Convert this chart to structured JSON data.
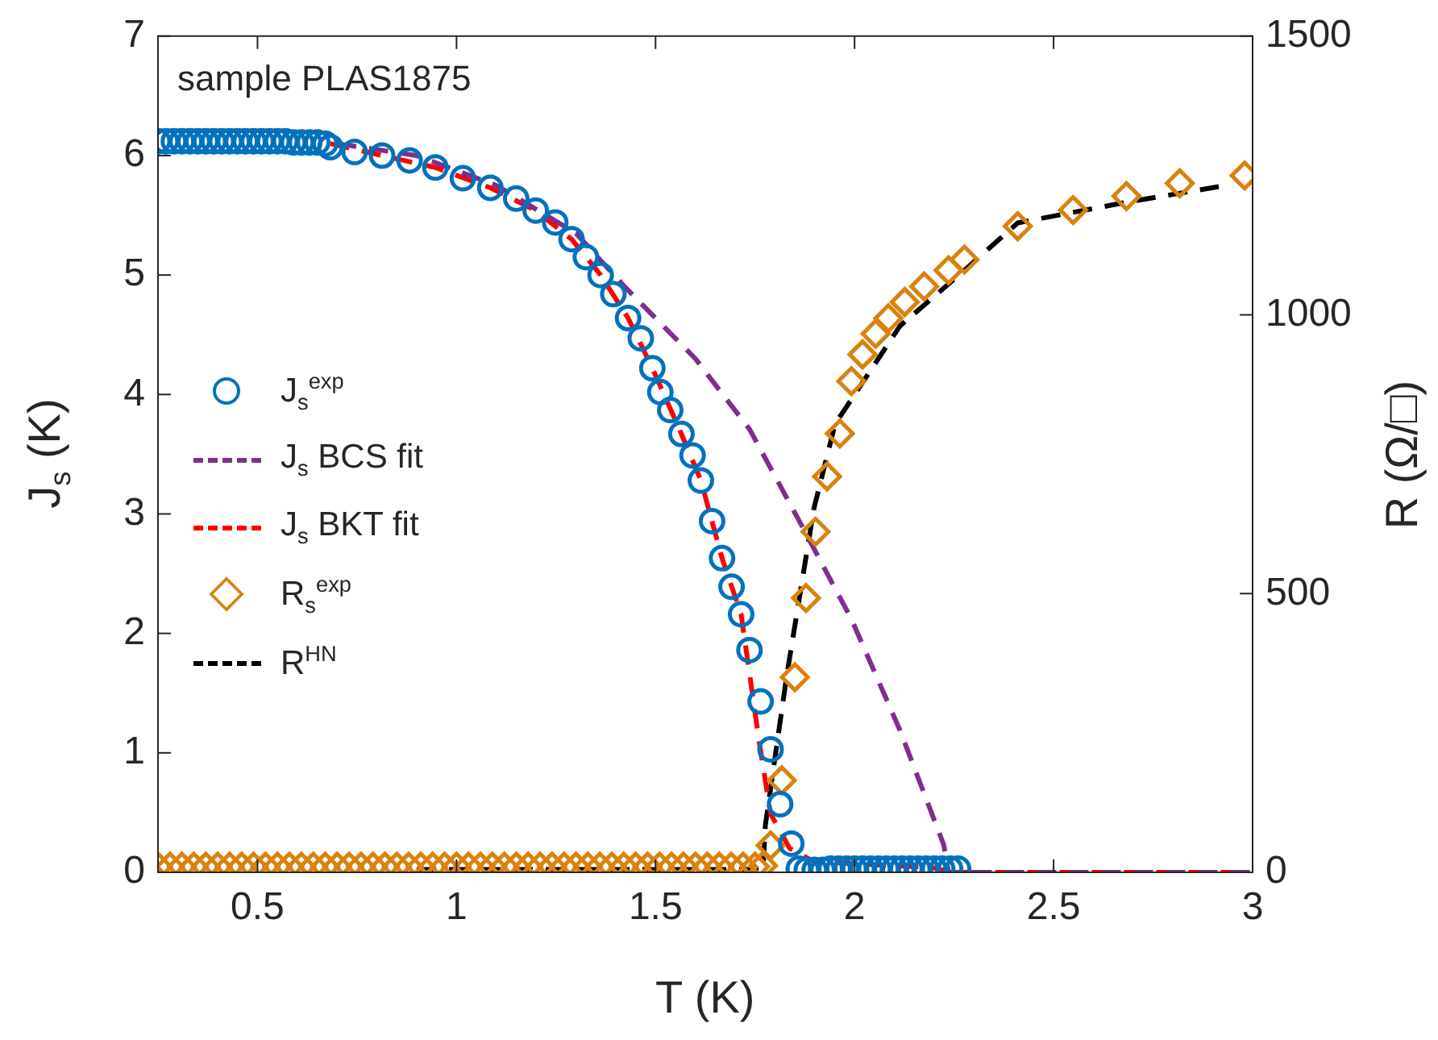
{
  "chart_data": {
    "type": "scatter",
    "xlabel": "T (K)",
    "ylabel": "J$_{s}$ (K)",
    "y2label": "R (Ω/□)",
    "annotations": [
      "sample PLAS1875"
    ],
    "xlim": [
      0.25,
      3
    ],
    "xticks": [
      0.5,
      1,
      1.5,
      2,
      2.5,
      3
    ],
    "ylim": [
      0,
      7
    ],
    "yticks": [
      0,
      1,
      2,
      3,
      4,
      5,
      6,
      7
    ],
    "y2lim": [
      0,
      1500
    ],
    "y2ticks": [
      0,
      500,
      1000,
      1500
    ],
    "legend": "left",
    "series": [
      {
        "name": "J$_{s}$$^{exp}$",
        "type": "scatter",
        "marker": "circle",
        "color": "#0072bd",
        "x": [
          0.25,
          0.27,
          0.29,
          0.31,
          0.33,
          0.35,
          0.37,
          0.39,
          0.41,
          0.43,
          0.45,
          0.47,
          0.49,
          0.51,
          0.53,
          0.55,
          0.57,
          0.59,
          0.61,
          0.63,
          0.65,
          0.67,
          0.683,
          0.744,
          0.813,
          0.882,
          0.947,
          1.016,
          1.085,
          1.15,
          1.199,
          1.248,
          1.289,
          1.325,
          1.362,
          1.394,
          1.431,
          1.463,
          1.492,
          1.512,
          1.537,
          1.565,
          1.593,
          1.614,
          1.642,
          1.667,
          1.691,
          1.715,
          1.736,
          1.764,
          1.789,
          1.813,
          1.841,
          1.86,
          1.88,
          1.9,
          1.92,
          1.94,
          1.96,
          1.98,
          2,
          2.02,
          2.04,
          2.06,
          2.08,
          2.1,
          2.12,
          2.14,
          2.16,
          2.18,
          2.2,
          2.22,
          2.24,
          2.26
        ],
        "values": [
          6.12,
          6.12,
          6.12,
          6.12,
          6.12,
          6.12,
          6.12,
          6.12,
          6.12,
          6.12,
          6.12,
          6.12,
          6.12,
          6.12,
          6.12,
          6.12,
          6.12,
          6.11,
          6.11,
          6.11,
          6.11,
          6.1,
          6.07,
          6.03,
          6.0,
          5.96,
          5.9,
          5.81,
          5.73,
          5.64,
          5.54,
          5.44,
          5.3,
          5.15,
          5.0,
          4.84,
          4.64,
          4.47,
          4.22,
          4.02,
          3.87,
          3.67,
          3.49,
          3.28,
          2.94,
          2.63,
          2.39,
          2.16,
          1.86,
          1.43,
          1.03,
          0.57,
          0.24,
          0.03,
          0.02,
          0.02,
          0.02,
          0.03,
          0.03,
          0.03,
          0.03,
          0.03,
          0.03,
          0.03,
          0.03,
          0.03,
          0.03,
          0.03,
          0.03,
          0.03,
          0.03,
          0.03,
          0.03,
          0.03
        ]
      },
      {
        "name": "J$_{s}$ BCS fit",
        "type": "line",
        "line_style": "dashed",
        "color": "#7e2f8e",
        "x": [
          0.7,
          0.9,
          1.1,
          1.3,
          1.423,
          1.6,
          1.736,
          1.858,
          1.992,
          2.114,
          2.224,
          2.236,
          3
        ],
        "values": [
          6.1,
          6.0,
          5.75,
          5.35,
          4.9,
          4.3,
          3.71,
          2.96,
          2.12,
          1.19,
          0.23,
          0,
          0
        ]
      },
      {
        "name": "J$_{s}$ BKT fit",
        "type": "line",
        "line_style": "dashed",
        "color": "#ff0000",
        "x": [
          0.683,
          0.813,
          0.947,
          1.085,
          1.199,
          1.289,
          1.362,
          1.431,
          1.492,
          1.565,
          1.614,
          1.667,
          1.715,
          1.76,
          1.789,
          1.837,
          1.898,
          2.195,
          2.248,
          3
        ],
        "values": [
          6.1,
          6.0,
          5.9,
          5.73,
          5.54,
          5.3,
          5.0,
          4.64,
          4.22,
          3.67,
          3.28,
          2.63,
          2.16,
          1.1,
          0.49,
          0.2,
          0.09,
          0.04,
          0,
          0
        ]
      },
      {
        "name": "R$_{s}$$^{exp}$",
        "type": "scatter",
        "axis": "y2",
        "marker": "diamond",
        "color": "#d9820e",
        "x": [
          0.25,
          0.28,
          0.31,
          0.34,
          0.37,
          0.4,
          0.43,
          0.46,
          0.49,
          0.52,
          0.55,
          0.58,
          0.61,
          0.64,
          0.67,
          0.7,
          0.73,
          0.76,
          0.79,
          0.82,
          0.85,
          0.88,
          0.91,
          0.94,
          0.97,
          1.0,
          1.03,
          1.06,
          1.09,
          1.12,
          1.15,
          1.18,
          1.21,
          1.24,
          1.27,
          1.3,
          1.33,
          1.36,
          1.39,
          1.42,
          1.45,
          1.48,
          1.51,
          1.54,
          1.57,
          1.6,
          1.63,
          1.66,
          1.69,
          1.72,
          1.75,
          1.77,
          1.789,
          1.817,
          1.85,
          1.878,
          1.902,
          1.931,
          1.963,
          1.992,
          2.02,
          2.053,
          2.085,
          2.126,
          2.175,
          2.236,
          2.276,
          2.41,
          2.549,
          2.683,
          2.817,
          2.98
        ],
        "values": [
          10,
          10,
          10,
          10,
          10,
          10,
          10,
          10,
          10,
          10,
          10,
          10,
          10,
          10,
          10,
          10,
          10,
          10,
          10,
          10,
          10,
          10,
          10,
          10,
          10,
          10,
          10,
          10,
          10,
          10,
          10,
          10,
          10,
          10,
          10,
          10,
          10,
          10,
          10,
          10,
          10,
          10,
          10,
          10,
          10,
          10,
          10,
          10,
          10,
          10,
          10,
          12,
          48,
          165,
          350,
          492,
          611,
          710,
          787,
          881,
          929,
          966,
          994,
          1023,
          1051,
          1080,
          1099,
          1159,
          1188,
          1213,
          1236,
          1250
        ]
      },
      {
        "name": "R$^{HN}$",
        "type": "line",
        "axis": "y2",
        "line_style": "dashed",
        "color": "#000000",
        "x": [
          0.9,
          1.77,
          1.776,
          1.829,
          1.898,
          1.951,
          2.114,
          2.276,
          2.41,
          2.683,
          2.915
        ],
        "values": [
          5,
          5,
          85,
          350,
          653,
          804,
          980,
          1080,
          1165,
          1202,
          1230
        ]
      }
    ]
  }
}
